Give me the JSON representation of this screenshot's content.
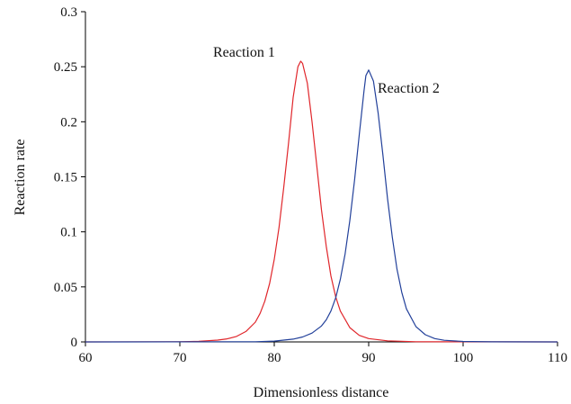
{
  "chart_data": {
    "type": "line",
    "xlabel": "Dimensionless distance",
    "ylabel": "Reaction rate",
    "xlim": [
      60,
      110
    ],
    "ylim": [
      0,
      0.3
    ],
    "grid": false,
    "legend": "none",
    "x_ticks": [
      "60",
      "70",
      "80",
      "90",
      "100",
      "110"
    ],
    "y_ticks": [
      "0",
      "0.05",
      "0.1",
      "0.15",
      "0.2",
      "0.25",
      "0.3"
    ],
    "annotations": [
      "Reaction 1",
      "Reaction 2"
    ],
    "series": [
      {
        "color": "#e0262b",
        "x": [
          60,
          70,
          72,
          74,
          75,
          76,
          77,
          78,
          78.5,
          79,
          79.5,
          80,
          80.5,
          81,
          81.5,
          82,
          82.5,
          82.8,
          83,
          83.5,
          84,
          84.5,
          85,
          85.5,
          86,
          86.5,
          87,
          88,
          89,
          90,
          92,
          95,
          110
        ],
        "y": [
          0,
          0.0002,
          0.0006,
          0.0016,
          0.0028,
          0.005,
          0.0095,
          0.018,
          0.026,
          0.037,
          0.053,
          0.075,
          0.104,
          0.14,
          0.18,
          0.222,
          0.25,
          0.255,
          0.253,
          0.235,
          0.2,
          0.16,
          0.12,
          0.087,
          0.06,
          0.041,
          0.028,
          0.013,
          0.006,
          0.003,
          0.001,
          0.0002,
          0
        ]
      },
      {
        "color": "#22409a",
        "x": [
          60,
          78,
          80,
          82,
          83,
          84,
          85,
          85.5,
          86,
          86.5,
          87,
          87.5,
          88,
          88.5,
          89,
          89.5,
          89.7,
          90,
          90.5,
          91,
          91.5,
          92,
          92.5,
          93,
          93.5,
          94,
          95,
          96,
          97,
          98,
          100,
          103,
          110
        ],
        "y": [
          0,
          0.0002,
          0.0007,
          0.0025,
          0.0045,
          0.008,
          0.0145,
          0.02,
          0.028,
          0.04,
          0.057,
          0.08,
          0.11,
          0.147,
          0.188,
          0.228,
          0.242,
          0.247,
          0.237,
          0.208,
          0.17,
          0.13,
          0.095,
          0.066,
          0.045,
          0.03,
          0.014,
          0.0065,
          0.003,
          0.0015,
          0.0004,
          0.0001,
          0
        ]
      }
    ]
  }
}
